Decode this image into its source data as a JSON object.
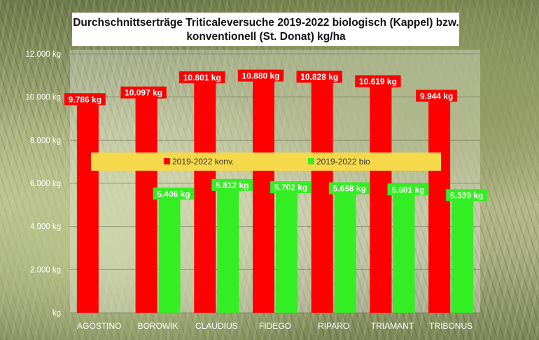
{
  "chart_data": {
    "type": "bar",
    "title": "Durchschnittserträge Triticaleversuche 2019-2022 biologisch (Kappel) bzw. konventionell (St. Donat) kg/ha",
    "title_lines": [
      "Durchschnittserträge Triticaleversuche 2019-2022 biologisch (Kappel) bzw.",
      "konventionell (St. Donat) kg/ha"
    ],
    "categories": [
      "AGOSTINO",
      "BOROWIK",
      "CLAUDIUS",
      "FIDEGO",
      "RIPARO",
      "TRIAMANT",
      "TRIBONUS"
    ],
    "series": [
      {
        "name": "2019-2022 konv.",
        "color": "#ff0000",
        "values": [
          9786,
          10097,
          10801,
          10880,
          10828,
          10619,
          9944
        ],
        "labels": [
          "9.786 kg",
          "10.097 kg",
          "10.801 kg",
          "10.880 kg",
          "10.828 kg",
          "10.619 kg",
          "9.944 kg"
        ]
      },
      {
        "name": "2019-2022 bio",
        "color": "#33ee22",
        "values": [
          null,
          5406,
          5812,
          5702,
          5658,
          5601,
          5339
        ],
        "labels": [
          "",
          "5.406 kg",
          "5.812 kg",
          "5.702 kg",
          "5.658 kg",
          "5.601 kg",
          "5.339 kg"
        ]
      }
    ],
    "ylim": [
      0,
      12000
    ],
    "yticks": [
      0,
      2000,
      4000,
      6000,
      8000,
      10000,
      12000
    ],
    "ytick_labels": [
      "kg",
      "2.000 kg",
      "4.000 kg",
      "6.000 kg",
      "8.000 kg",
      "10.000 kg",
      "12.000 kg"
    ],
    "xlabel": "",
    "ylabel": "",
    "grid": true,
    "legend": "center",
    "legend_color": "#f5d94a",
    "plot_background": "#ffffff"
  }
}
